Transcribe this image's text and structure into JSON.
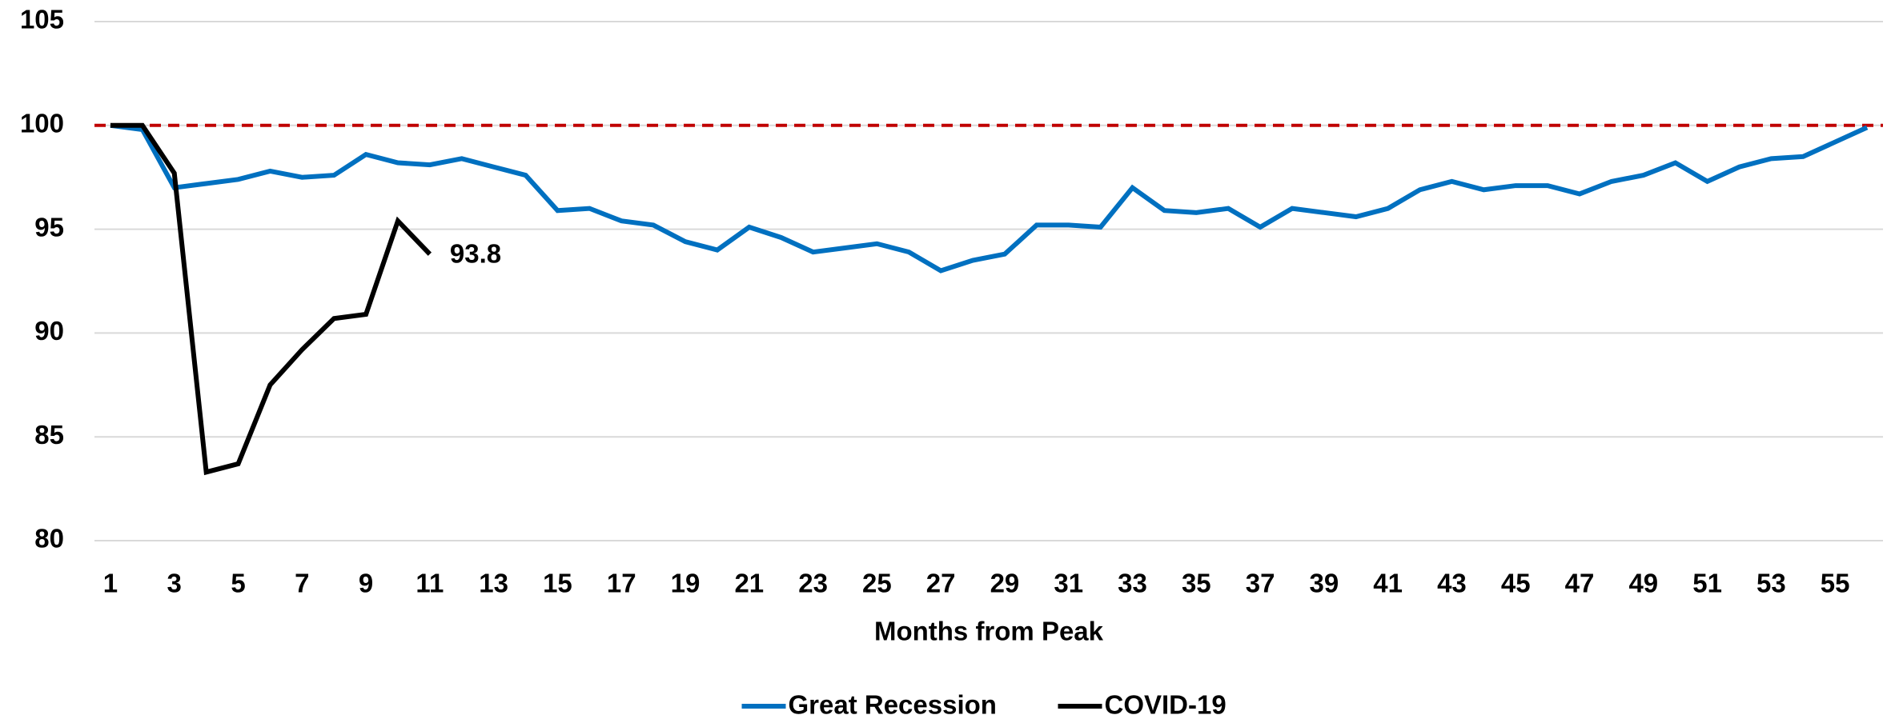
{
  "chart_data": {
    "type": "line",
    "x_label": "Months from Peak",
    "x": [
      1,
      2,
      3,
      4,
      5,
      6,
      7,
      8,
      9,
      10,
      11,
      12,
      13,
      14,
      15,
      16,
      17,
      18,
      19,
      20,
      21,
      22,
      23,
      24,
      25,
      26,
      27,
      28,
      29,
      30,
      31,
      32,
      33,
      34,
      35,
      36,
      37,
      38,
      39,
      40,
      41,
      42,
      43,
      44,
      45,
      46,
      47,
      48,
      49,
      50,
      51,
      52,
      53,
      54,
      55,
      56
    ],
    "xlim": [
      0.5,
      56.5
    ],
    "xticks": [
      1,
      3,
      5,
      7,
      9,
      11,
      13,
      15,
      17,
      19,
      21,
      23,
      25,
      27,
      29,
      31,
      33,
      35,
      37,
      39,
      41,
      43,
      45,
      47,
      49,
      51,
      53,
      55
    ],
    "ylim": [
      80,
      105
    ],
    "yticks": [
      80,
      85,
      90,
      95,
      100,
      105
    ],
    "grid": true,
    "legend": "bottom",
    "reference_line": {
      "value": 100,
      "color": "#c00000",
      "style": "dashed"
    },
    "series": [
      {
        "name": "Great Recession",
        "color": "#0070c0",
        "values": [
          100,
          99.8,
          97.0,
          97.2,
          97.4,
          97.8,
          97.5,
          97.6,
          98.6,
          98.2,
          98.1,
          98.4,
          98.0,
          97.6,
          95.9,
          96.0,
          95.4,
          95.2,
          94.4,
          94.0,
          95.1,
          94.6,
          93.9,
          94.1,
          94.3,
          93.9,
          93.0,
          93.5,
          93.8,
          95.2,
          95.2,
          95.1,
          97.0,
          95.9,
          95.8,
          96.0,
          95.1,
          96.0,
          95.8,
          95.6,
          96.0,
          96.9,
          97.3,
          96.9,
          97.1,
          97.1,
          96.7,
          97.3,
          97.6,
          98.2,
          97.3,
          98.0,
          98.4,
          98.5,
          99.2,
          99.9
        ]
      },
      {
        "name": "COVID-19",
        "color": "#000000",
        "label_last": true,
        "values": [
          100,
          100,
          97.7,
          83.3,
          83.7,
          87.5,
          89.2,
          90.7,
          90.9,
          95.4,
          93.8,
          null,
          null,
          null,
          null,
          null,
          null,
          null,
          null,
          null,
          null,
          null,
          null,
          null,
          null,
          null,
          null,
          null,
          null,
          null,
          null,
          null,
          null,
          null,
          null,
          null,
          null,
          null,
          null,
          null,
          null,
          null,
          null,
          null,
          null,
          null,
          null,
          null,
          null,
          null,
          null,
          null,
          null,
          null,
          null,
          null
        ]
      }
    ]
  }
}
